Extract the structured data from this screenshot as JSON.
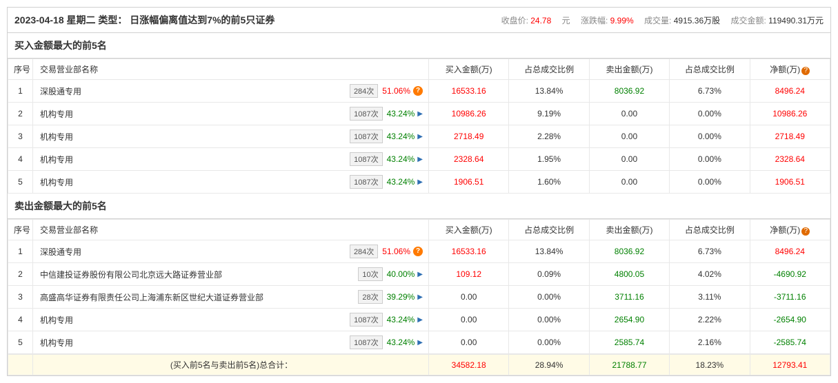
{
  "header": {
    "date": "2023-04-18",
    "weekday": "星期二",
    "type_label": "类型：",
    "type_value": "日涨幅偏离值达到7%的前5只证券",
    "close_label": "收盘价:",
    "close_value": "24.78",
    "close_unit": "元",
    "change_label": "涨跌幅:",
    "change_value": "9.99%",
    "volume_label": "成交量:",
    "volume_value": "4915.36万股",
    "amount_label": "成交金额:",
    "amount_value": "119490.31万元"
  },
  "columns": {
    "idx": "序号",
    "dept": "交易营业部名称",
    "buy_amt": "买入金额(万)",
    "buy_pct": "占总成交比例",
    "sell_amt": "卖出金额(万)",
    "sell_pct": "占总成交比例",
    "net_amt": "净额(万)"
  },
  "buy_section": {
    "title": "买入金额最大的前5名",
    "rows": [
      {
        "idx": "1",
        "dept": "深股通专用",
        "count": "284次",
        "pct": "51.06%",
        "pct_color": "red",
        "icon": "warn",
        "buy": "16533.16",
        "buy_pct": "13.84%",
        "sell": "8036.92",
        "sell_pct": "6.73%",
        "net": "8496.24",
        "net_color": "red",
        "sell_color": "green"
      },
      {
        "idx": "2",
        "dept": "机构专用",
        "count": "1087次",
        "pct": "43.24%",
        "pct_color": "green",
        "icon": "arrow",
        "buy": "10986.26",
        "buy_pct": "9.19%",
        "sell": "0.00",
        "sell_pct": "0.00%",
        "net": "10986.26",
        "net_color": "red",
        "sell_color": "black"
      },
      {
        "idx": "3",
        "dept": "机构专用",
        "count": "1087次",
        "pct": "43.24%",
        "pct_color": "green",
        "icon": "arrow",
        "buy": "2718.49",
        "buy_pct": "2.28%",
        "sell": "0.00",
        "sell_pct": "0.00%",
        "net": "2718.49",
        "net_color": "red",
        "sell_color": "black"
      },
      {
        "idx": "4",
        "dept": "机构专用",
        "count": "1087次",
        "pct": "43.24%",
        "pct_color": "green",
        "icon": "arrow",
        "buy": "2328.64",
        "buy_pct": "1.95%",
        "sell": "0.00",
        "sell_pct": "0.00%",
        "net": "2328.64",
        "net_color": "red",
        "sell_color": "black"
      },
      {
        "idx": "5",
        "dept": "机构专用",
        "count": "1087次",
        "pct": "43.24%",
        "pct_color": "green",
        "icon": "arrow",
        "buy": "1906.51",
        "buy_pct": "1.60%",
        "sell": "0.00",
        "sell_pct": "0.00%",
        "net": "1906.51",
        "net_color": "red",
        "sell_color": "black"
      }
    ]
  },
  "sell_section": {
    "title": "卖出金额最大的前5名",
    "rows": [
      {
        "idx": "1",
        "dept": "深股通专用",
        "count": "284次",
        "pct": "51.06%",
        "pct_color": "red",
        "icon": "warn",
        "buy": "16533.16",
        "buy_pct": "13.84%",
        "sell": "8036.92",
        "sell_pct": "6.73%",
        "net": "8496.24",
        "net_color": "red",
        "sell_color": "green",
        "buy_color": "red"
      },
      {
        "idx": "2",
        "dept": "中信建投证券股份有限公司北京远大路证券营业部",
        "count": "10次",
        "pct": "40.00%",
        "pct_color": "green",
        "icon": "arrow",
        "buy": "109.12",
        "buy_pct": "0.09%",
        "sell": "4800.05",
        "sell_pct": "4.02%",
        "net": "-4690.92",
        "net_color": "green",
        "sell_color": "green",
        "buy_color": "red"
      },
      {
        "idx": "3",
        "dept": "高盛高华证券有限责任公司上海浦东新区世纪大道证券营业部",
        "count": "28次",
        "pct": "39.29%",
        "pct_color": "green",
        "icon": "arrow",
        "buy": "0.00",
        "buy_pct": "0.00%",
        "sell": "3711.16",
        "sell_pct": "3.11%",
        "net": "-3711.16",
        "net_color": "green",
        "sell_color": "green",
        "buy_color": "black"
      },
      {
        "idx": "4",
        "dept": "机构专用",
        "count": "1087次",
        "pct": "43.24%",
        "pct_color": "green",
        "icon": "arrow",
        "buy": "0.00",
        "buy_pct": "0.00%",
        "sell": "2654.90",
        "sell_pct": "2.22%",
        "net": "-2654.90",
        "net_color": "green",
        "sell_color": "green",
        "buy_color": "black"
      },
      {
        "idx": "5",
        "dept": "机构专用",
        "count": "1087次",
        "pct": "43.24%",
        "pct_color": "green",
        "icon": "arrow",
        "buy": "0.00",
        "buy_pct": "0.00%",
        "sell": "2585.74",
        "sell_pct": "2.16%",
        "net": "-2585.74",
        "net_color": "green",
        "sell_color": "green",
        "buy_color": "black"
      }
    ]
  },
  "total": {
    "label": "(买入前5名与卖出前5名)总合计：",
    "buy": "34582.18",
    "buy_pct": "28.94%",
    "sell": "21788.77",
    "sell_pct": "18.23%",
    "net": "12793.41"
  },
  "colors": {
    "red": "#ff0000",
    "green": "#008000",
    "border": "#d0d0d0",
    "highlight_bg": "#fffbe6"
  }
}
